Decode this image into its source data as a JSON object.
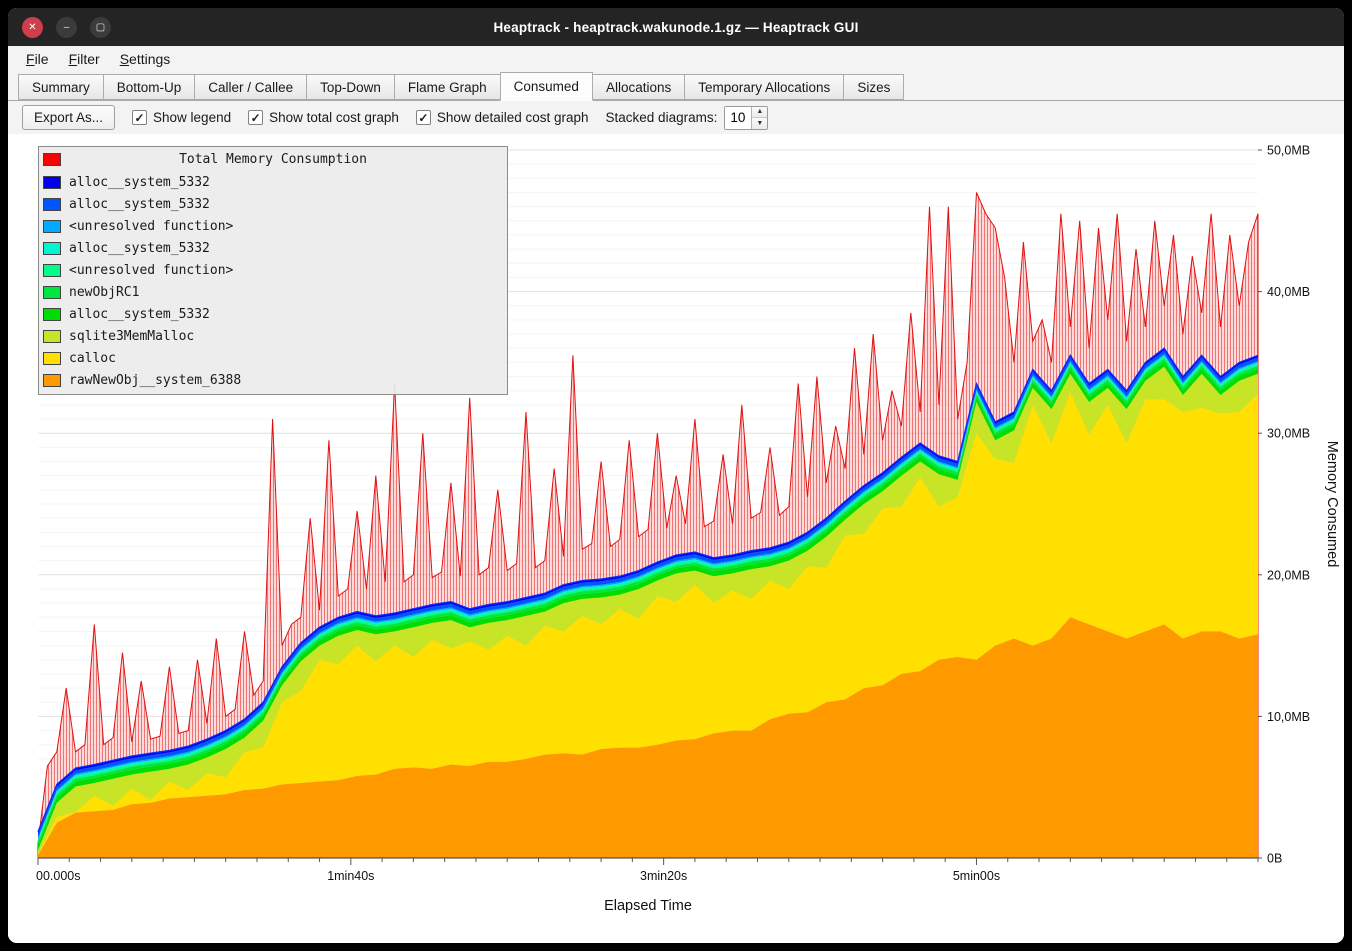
{
  "window": {
    "title": "Heaptrack - heaptrack.wakunode.1.gz — Heaptrack GUI",
    "controls": [
      {
        "name": "close",
        "glyph": "✕"
      },
      {
        "name": "minimize",
        "glyph": "–"
      },
      {
        "name": "maximize",
        "glyph": "▢"
      }
    ]
  },
  "menu": {
    "items": [
      "File",
      "Filter",
      "Settings"
    ]
  },
  "tabs": {
    "active_index": 5,
    "items": [
      "Summary",
      "Bottom-Up",
      "Caller / Callee",
      "Top-Down",
      "Flame Graph",
      "Consumed",
      "Allocations",
      "Temporary Allocations",
      "Sizes"
    ]
  },
  "toolbar": {
    "export_label": "Export As...",
    "check_glyph": "✓",
    "checkboxes": [
      {
        "label": "Show legend",
        "checked": true
      },
      {
        "label": "Show total cost graph",
        "checked": true
      },
      {
        "label": "Show detailed cost graph",
        "checked": true
      }
    ],
    "stacked_label": "Stacked diagrams:",
    "stacked_value": "10",
    "spin_up_icon": "▲",
    "spin_down_icon": "▼"
  },
  "chart_data": {
    "type": "area",
    "stacked": true,
    "xlabel": "Elapsed Time",
    "ylabel": "Memory Consumed",
    "ylim": [
      0,
      50
    ],
    "xmax": 390,
    "grid": true,
    "legend_position": "top-left",
    "yticks": [
      "0B",
      "10,0MB",
      "20,0MB",
      "30,0MB",
      "40,0MB",
      "50,0MB"
    ],
    "xticks": [
      {
        "t": 0,
        "label": "00.000s",
        "anchor": "start"
      },
      {
        "t": 100,
        "label": "1min40s",
        "anchor": "middle"
      },
      {
        "t": 200,
        "label": "3min20s",
        "anchor": "middle"
      },
      {
        "t": 300,
        "label": "5min00s",
        "anchor": "middle"
      }
    ],
    "x": [
      0,
      6,
      12,
      18,
      24,
      30,
      36,
      42,
      48,
      54,
      60,
      66,
      72,
      78,
      84,
      90,
      96,
      102,
      108,
      114,
      120,
      126,
      132,
      138,
      144,
      150,
      156,
      162,
      168,
      174,
      180,
      186,
      192,
      198,
      204,
      210,
      216,
      222,
      228,
      234,
      240,
      246,
      252,
      258,
      264,
      270,
      276,
      282,
      288,
      294,
      300,
      306,
      312,
      318,
      324,
      330,
      336,
      342,
      348,
      354,
      360,
      366,
      372,
      378,
      384,
      390
    ],
    "series": [
      {
        "name": "rawNewObj__system_6388",
        "color": "#ff9900",
        "values": [
          0.2,
          2.5,
          3.2,
          3.3,
          3.4,
          3.8,
          3.9,
          4.2,
          4.3,
          4.4,
          4.5,
          4.8,
          4.9,
          5.2,
          5.3,
          5.4,
          5.5,
          5.8,
          5.9,
          6.3,
          6.4,
          6.3,
          6.6,
          6.5,
          6.8,
          6.8,
          7.0,
          7.3,
          7.4,
          7.3,
          7.7,
          7.8,
          7.8,
          8.0,
          8.3,
          8.4,
          8.8,
          9.0,
          9.0,
          9.8,
          10.2,
          10.3,
          11.0,
          11.2,
          12.0,
          12.2,
          13.0,
          13.2,
          14.0,
          14.2,
          14.0,
          15.0,
          15.5,
          15.0,
          15.5,
          17.0,
          16.5,
          16.0,
          15.5,
          16.0,
          16.5,
          15.5,
          16.0,
          16.0,
          15.5,
          15.8
        ]
      },
      {
        "name": "calloc",
        "color": "#ffe000",
        "values": [
          0.05,
          0.4,
          0.05,
          1.1,
          0.3,
          1.1,
          0.2,
          1.2,
          0.5,
          1.6,
          1.2,
          2.7,
          2.9,
          5.8,
          6.5,
          8.6,
          8.2,
          9.2,
          8.0,
          8.7,
          7.8,
          9.1,
          8.2,
          8.8,
          7.9,
          8.9,
          8.0,
          9.1,
          8.6,
          9.8,
          8.8,
          9.8,
          9.1,
          10.5,
          9.8,
          10.9,
          9.2,
          9.9,
          9.3,
          9.8,
          8.8,
          10.3,
          9.5,
          11.6,
          10.9,
          12.5,
          11.8,
          13.7,
          10.8,
          11.3,
          16.0,
          13.2,
          12.4,
          17.0,
          13.8,
          15.9,
          13.4,
          16.0,
          13.8,
          16.4,
          15.9,
          16.0,
          15.8,
          15.4,
          16.0,
          17.0
        ]
      },
      {
        "name": "sqlite3MemMalloc",
        "color": "#c8e426",
        "values": [
          0.3,
          1.0,
          1.8,
          0.9,
          1.9,
          1.0,
          2.0,
          0.9,
          1.8,
          1.1,
          2.0,
          1.0,
          1.9,
          1.2,
          2.1,
          1.0,
          2.0,
          1.1,
          1.9,
          1.0,
          2.1,
          1.2,
          2.0,
          1.0,
          1.9,
          1.1,
          2.1,
          1.0,
          2.0,
          1.2,
          1.9,
          1.0,
          2.1,
          1.1,
          2.0,
          1.0,
          1.9,
          1.2,
          2.1,
          1.0,
          2.0,
          1.1,
          2.2,
          1.1,
          2.1,
          1.2,
          2.2,
          1.1,
          2.3,
          1.2,
          2.2,
          1.3,
          2.3,
          1.2,
          2.4,
          1.3,
          2.3,
          1.2,
          2.4,
          1.3,
          2.3,
          1.2,
          2.4,
          1.3,
          2.2,
          1.4
        ]
      },
      {
        "name": "alloc__system_5332",
        "color": "#00dd00",
        "constant": 0.35
      },
      {
        "name": "newObjRC1",
        "color": "#00e640",
        "constant": 0.2
      },
      {
        "name": "<unresolved function>",
        "color": "#00ff88",
        "constant": 0.15
      },
      {
        "name": "alloc__system_5332",
        "color": "#00f5d0",
        "constant": 0.1
      },
      {
        "name": "<unresolved function>",
        "color": "#00aaff",
        "constant": 0.1
      },
      {
        "name": "alloc__system_5332",
        "color": "#0055ff",
        "constant": 0.25
      },
      {
        "name": "alloc__system_5332",
        "color": "#0000ee",
        "constant": 0.15
      }
    ],
    "total": {
      "name": "Total Memory Consumption",
      "color": "#ff0000",
      "x_start": 0,
      "x_step": 3,
      "values": [
        1.0,
        6.5,
        7.5,
        12.0,
        7.5,
        8.0,
        16.5,
        8.0,
        8.5,
        14.5,
        8.2,
        12.5,
        8.4,
        8.6,
        13.5,
        8.8,
        9.0,
        14.0,
        9.5,
        15.5,
        10.0,
        10.5,
        16.0,
        11.5,
        12.5,
        31.0,
        15.0,
        16.5,
        17.0,
        24.0,
        17.5,
        29.5,
        18.5,
        19.0,
        24.5,
        19.0,
        27.0,
        19.5,
        33.5,
        19.5,
        20.0,
        30.0,
        19.8,
        20.2,
        26.5,
        19.9,
        32.5,
        20.0,
        20.5,
        26.0,
        20.3,
        20.8,
        31.5,
        20.5,
        21.0,
        27.5,
        21.3,
        35.5,
        21.8,
        22.2,
        28.0,
        22.0,
        22.5,
        29.5,
        22.7,
        23.2,
        30.0,
        23.3,
        27.0,
        23.6,
        31.0,
        23.4,
        23.8,
        28.5,
        23.6,
        32.0,
        24.0,
        24.4,
        29.0,
        24.2,
        24.8,
        33.5,
        25.5,
        34.0,
        26.5,
        30.5,
        27.5,
        36.0,
        28.5,
        37.0,
        29.5,
        33.0,
        30.5,
        38.5,
        31.5,
        46.0,
        32.0,
        46.0,
        31.0,
        35.0,
        47.0,
        45.5,
        44.5,
        41.0,
        35.0,
        43.5,
        36.5,
        38.0,
        35.0,
        45.5,
        37.5,
        45.0,
        36.0,
        44.5,
        38.0,
        45.5,
        36.5,
        43.0,
        37.5,
        45.0,
        39.0,
        44.0,
        37.0,
        42.5,
        38.5,
        45.5,
        37.5,
        44.0,
        39.0,
        43.5,
        45.5
      ]
    }
  }
}
